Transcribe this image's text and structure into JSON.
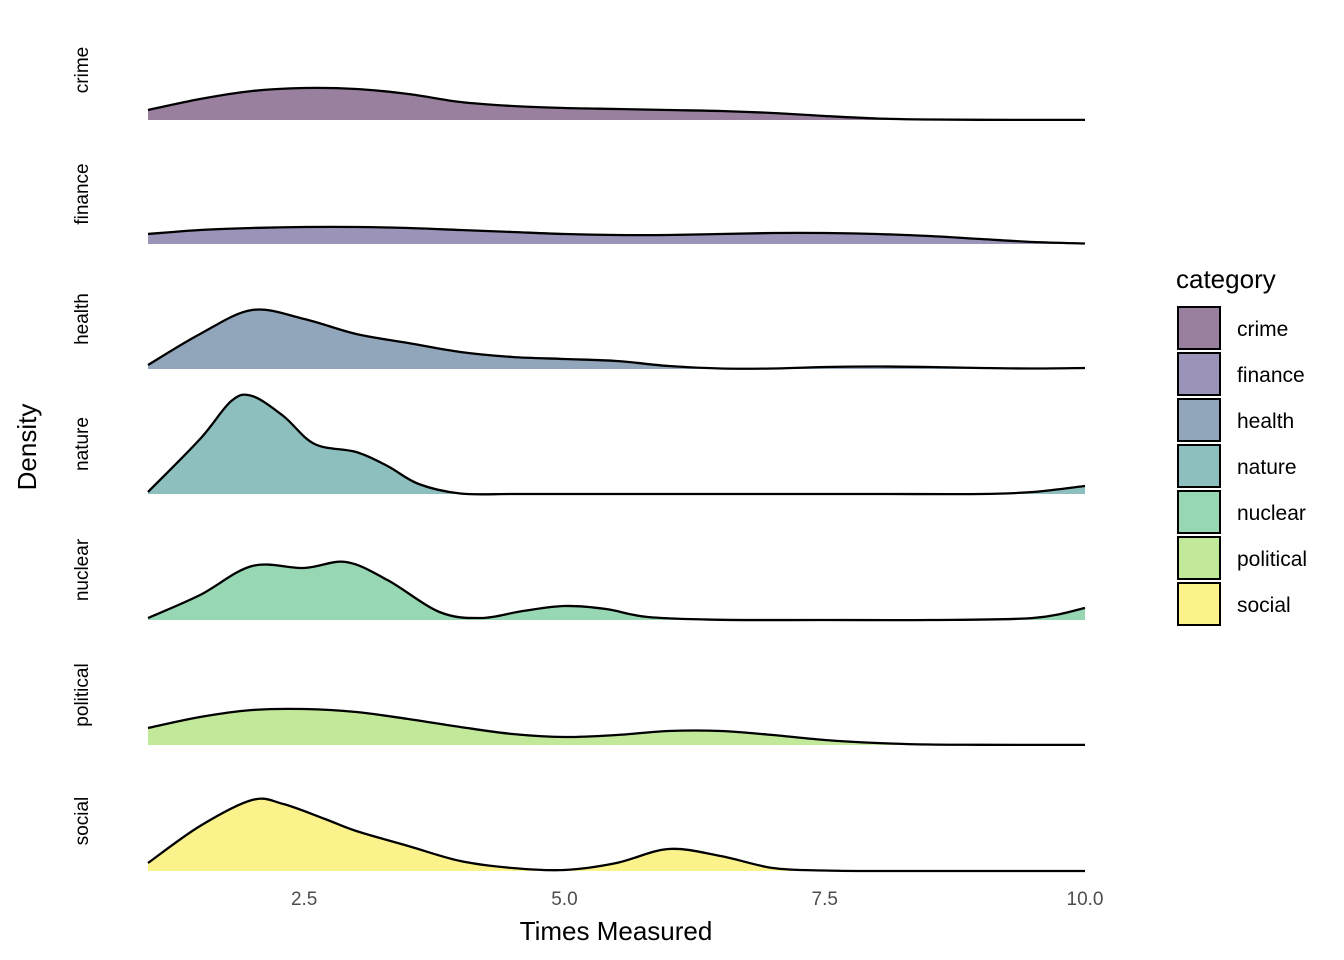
{
  "chart_data": {
    "type": "ridgeline",
    "xlabel": "Times Measured",
    "ylabel": "Density",
    "xlim": [
      1.0,
      10.0
    ],
    "x_ticks": [
      2.5,
      5.0,
      7.5,
      10.0
    ],
    "x_tick_labels": [
      "2.5",
      "5.0",
      "7.5",
      "10.0"
    ],
    "legend": {
      "title": "category",
      "position": "right"
    },
    "grid": false,
    "categories": [
      "crime",
      "finance",
      "health",
      "nature",
      "nuclear",
      "political",
      "social"
    ],
    "series": [
      {
        "name": "crime",
        "color": "#98809e",
        "x": [
          1.0,
          1.5,
          2.0,
          2.5,
          3.0,
          3.5,
          4.0,
          4.5,
          5.0,
          5.5,
          6.0,
          6.5,
          7.0,
          7.5,
          8.0,
          8.5,
          9.0,
          9.5,
          10.0
        ],
        "density": [
          0.1,
          0.21,
          0.29,
          0.32,
          0.31,
          0.26,
          0.18,
          0.14,
          0.12,
          0.11,
          0.1,
          0.09,
          0.07,
          0.04,
          0.015,
          0.005,
          0.002,
          0.001,
          0.001
        ]
      },
      {
        "name": "finance",
        "color": "#9b93b8",
        "x": [
          1.0,
          1.5,
          2.0,
          2.5,
          3.0,
          3.5,
          4.0,
          4.5,
          5.0,
          5.5,
          6.0,
          6.5,
          7.0,
          7.5,
          8.0,
          8.5,
          9.0,
          9.5,
          10.0
        ],
        "density": [
          0.1,
          0.14,
          0.16,
          0.17,
          0.17,
          0.16,
          0.14,
          0.12,
          0.1,
          0.09,
          0.09,
          0.1,
          0.11,
          0.11,
          0.1,
          0.08,
          0.05,
          0.02,
          0.005
        ]
      },
      {
        "name": "health",
        "color": "#91a6ba",
        "x": [
          1.0,
          1.5,
          2.0,
          2.5,
          3.0,
          3.5,
          4.0,
          4.5,
          5.0,
          5.5,
          6.0,
          6.5,
          7.0,
          7.5,
          8.0,
          8.5,
          9.0,
          9.5,
          10.0
        ],
        "density": [
          0.04,
          0.35,
          0.59,
          0.5,
          0.35,
          0.26,
          0.17,
          0.12,
          0.1,
          0.08,
          0.03,
          0.005,
          0.005,
          0.02,
          0.025,
          0.02,
          0.01,
          0.005,
          0.01
        ]
      },
      {
        "name": "nature",
        "color": "#8cbfbd",
        "x": [
          1.0,
          1.5,
          1.8,
          2.0,
          2.3,
          2.6,
          3.0,
          3.3,
          3.6,
          4.0,
          4.5,
          5.0,
          6.0,
          7.0,
          8.0,
          9.0,
          9.5,
          10.0
        ],
        "density": [
          0.02,
          0.55,
          0.93,
          0.98,
          0.78,
          0.5,
          0.42,
          0.28,
          0.1,
          0.005,
          0.0,
          0.0,
          0.0,
          0.0,
          0.0,
          0.0,
          0.02,
          0.08
        ]
      },
      {
        "name": "nuclear",
        "color": "#98d7b3",
        "x": [
          1.0,
          1.5,
          2.0,
          2.5,
          2.9,
          3.3,
          3.8,
          4.2,
          4.6,
          5.0,
          5.4,
          5.8,
          6.5,
          7.5,
          8.5,
          9.5,
          10.0
        ],
        "density": [
          0.02,
          0.25,
          0.54,
          0.52,
          0.58,
          0.4,
          0.08,
          0.02,
          0.09,
          0.14,
          0.11,
          0.03,
          0.002,
          0.0,
          0.0,
          0.02,
          0.12
        ]
      },
      {
        "name": "political",
        "color": "#c2e99a",
        "x": [
          1.0,
          1.5,
          2.0,
          2.5,
          3.0,
          3.5,
          4.0,
          4.5,
          5.0,
          5.5,
          6.0,
          6.5,
          7.0,
          7.5,
          8.0,
          8.5,
          9.0,
          10.0
        ],
        "density": [
          0.17,
          0.28,
          0.35,
          0.36,
          0.33,
          0.26,
          0.18,
          0.11,
          0.08,
          0.1,
          0.14,
          0.14,
          0.1,
          0.05,
          0.02,
          0.005,
          0.002,
          0.001
        ]
      },
      {
        "name": "social",
        "color": "#fcf28b",
        "x": [
          1.0,
          1.5,
          2.0,
          2.3,
          2.7,
          3.0,
          3.5,
          4.0,
          4.5,
          5.0,
          5.5,
          6.0,
          6.5,
          7.0,
          7.5,
          8.0,
          9.0,
          10.0
        ],
        "density": [
          0.08,
          0.45,
          0.71,
          0.67,
          0.52,
          0.4,
          0.25,
          0.1,
          0.03,
          0.01,
          0.08,
          0.22,
          0.15,
          0.03,
          0.005,
          0.0,
          0.0,
          0.0
        ]
      }
    ]
  }
}
